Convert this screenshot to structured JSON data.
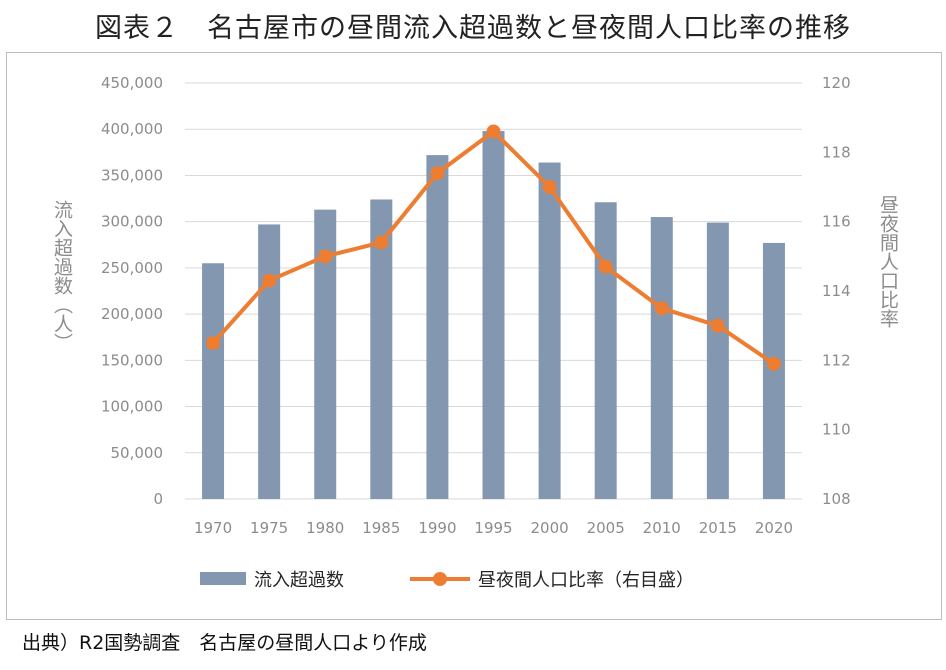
{
  "title": "図表２　名古屋市の昼間流入超過数と昼夜間人口比率の推移",
  "source": "出典）R2国勢調査　名古屋の昼間人口より作成",
  "chart_data": {
    "type": "bar",
    "title": "図表２　名古屋市の昼間流入超過数と昼夜間人口比率の推移",
    "categories": [
      "1970",
      "1975",
      "1980",
      "1985",
      "1990",
      "1995",
      "2000",
      "2005",
      "2010",
      "2015",
      "2020"
    ],
    "series": [
      {
        "name": "流入超過数",
        "type": "bar",
        "axis": "left",
        "color": "#8497b0",
        "values": [
          255000,
          297000,
          313000,
          324000,
          372000,
          398000,
          364000,
          321000,
          305000,
          299000,
          277000
        ]
      },
      {
        "name": "昼夜間人口比率（右目盛）",
        "type": "line",
        "axis": "right",
        "color": "#ed7d31",
        "values": [
          112.5,
          114.3,
          115.0,
          115.4,
          117.4,
          118.6,
          117.0,
          114.7,
          113.5,
          113.0,
          111.9
        ]
      }
    ],
    "ylabel": "流入超過数（人）",
    "y2label": "昼夜間人口比率",
    "ylim": [
      0,
      450000
    ],
    "y2lim": [
      108,
      120
    ],
    "yticks": [
      "0",
      "50,000",
      "100,000",
      "150,000",
      "200,000",
      "250,000",
      "300,000",
      "350,000",
      "400,000",
      "450,000"
    ],
    "y2ticks": [
      "108",
      "110",
      "112",
      "114",
      "116",
      "118",
      "120"
    ],
    "grid": true,
    "legend": "bottom"
  }
}
